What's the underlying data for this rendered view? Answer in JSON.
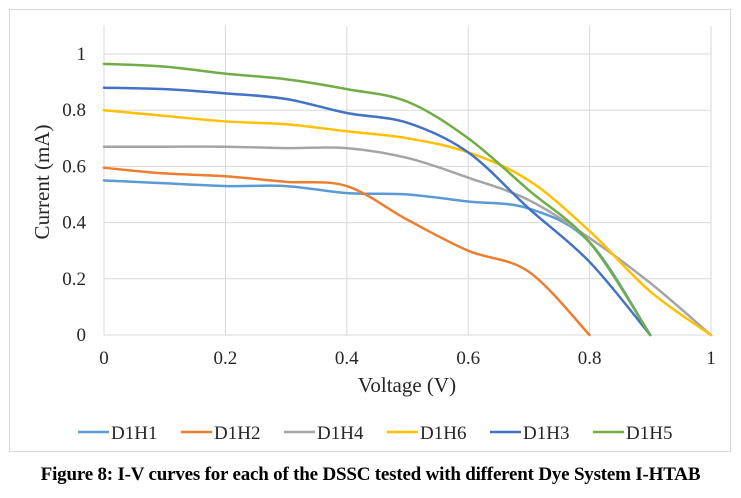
{
  "caption": "Figure 8: I-V curves for each of the DSSC tested with different Dye System I-HTAB",
  "chart_data": {
    "type": "line",
    "title": "",
    "xlabel": "Voltage (V)",
    "ylabel": "Current (mA)",
    "xlim": [
      0,
      1
    ],
    "ylim": [
      0,
      1.1
    ],
    "x_ticks": [
      0,
      0.2,
      0.4,
      0.6,
      0.8,
      1
    ],
    "x_tick_labels": [
      "0",
      "0.2",
      "0.4",
      "0.6",
      "0.8",
      "1"
    ],
    "y_ticks": [
      0,
      0.2,
      0.4,
      0.6,
      0.8,
      1
    ],
    "y_tick_labels": [
      "0",
      "0.2",
      "0.4",
      "0.6",
      "0.8",
      "1"
    ],
    "grid": true,
    "legend_position": "bottom",
    "smooth": true,
    "series": [
      {
        "name": "D1H1",
        "color": "#5B9BD5",
        "x": [
          0,
          0.1,
          0.2,
          0.3,
          0.4,
          0.5,
          0.6,
          0.7,
          0.8,
          0.9
        ],
        "y": [
          0.55,
          0.54,
          0.53,
          0.53,
          0.505,
          0.5,
          0.475,
          0.45,
          0.33,
          0
        ]
      },
      {
        "name": "D1H2",
        "color": "#ED7D31",
        "x": [
          0,
          0.1,
          0.2,
          0.3,
          0.4,
          0.5,
          0.6,
          0.7,
          0.8
        ],
        "y": [
          0.595,
          0.575,
          0.565,
          0.545,
          0.53,
          0.41,
          0.3,
          0.225,
          0
        ]
      },
      {
        "name": "D1H4",
        "color": "#A5A5A5",
        "x": [
          0,
          0.1,
          0.2,
          0.3,
          0.4,
          0.5,
          0.6,
          0.7,
          0.8,
          0.9,
          1.0
        ],
        "y": [
          0.67,
          0.67,
          0.67,
          0.665,
          0.665,
          0.63,
          0.56,
          0.48,
          0.345,
          0.185,
          0
        ]
      },
      {
        "name": "D1H6",
        "color": "#FFC000",
        "x": [
          0,
          0.1,
          0.2,
          0.3,
          0.4,
          0.5,
          0.6,
          0.7,
          0.8,
          0.9,
          1.0
        ],
        "y": [
          0.8,
          0.78,
          0.76,
          0.75,
          0.725,
          0.7,
          0.65,
          0.55,
          0.37,
          0.155,
          0
        ]
      },
      {
        "name": "D1H3",
        "color": "#4472C4",
        "x": [
          0,
          0.1,
          0.2,
          0.3,
          0.4,
          0.5,
          0.6,
          0.7,
          0.8,
          0.9
        ],
        "y": [
          0.88,
          0.875,
          0.86,
          0.84,
          0.79,
          0.755,
          0.65,
          0.45,
          0.26,
          0
        ]
      },
      {
        "name": "D1H5",
        "color": "#70AD47",
        "x": [
          0,
          0.1,
          0.2,
          0.3,
          0.4,
          0.5,
          0.6,
          0.7,
          0.8,
          0.9
        ],
        "y": [
          0.965,
          0.955,
          0.93,
          0.91,
          0.875,
          0.83,
          0.7,
          0.515,
          0.33,
          0
        ]
      }
    ]
  }
}
